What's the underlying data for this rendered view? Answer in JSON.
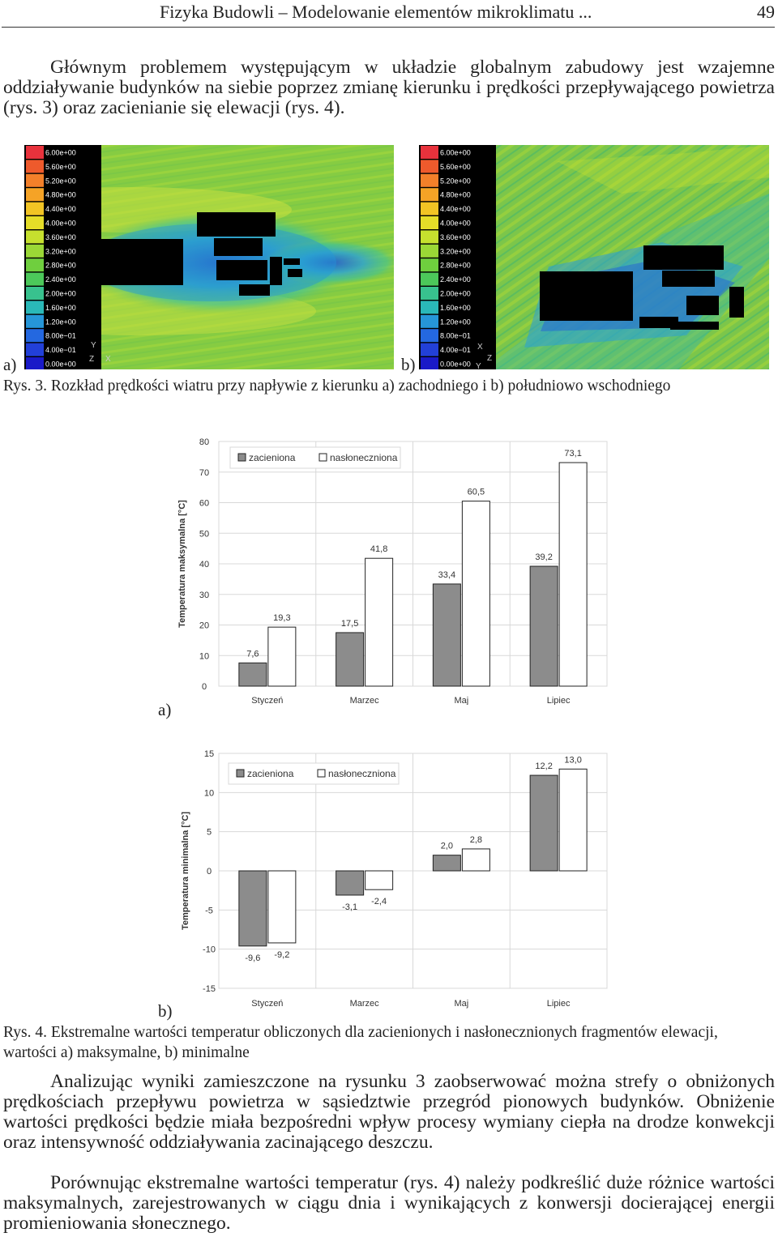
{
  "header": {
    "title": "Fizyka Budowli – Modelowanie elementów mikroklimatu ...",
    "page_number": "49"
  },
  "paragraph_1": "Głównym problemem występującym w układzie globalnym zabudowy jest wzajemne oddziaływanie budynków na siebie poprzez zmianę kierunku i prędkości przepływającego powietrza (rys. 3) oraz zacienianie się elewacji (rys. 4).",
  "fig3": {
    "label_a": "a)",
    "label_b": "b)",
    "caption": "Rys. 3. Rozkład prędkości wiatru przy napływie z kierunku a) zachodniego i b) południowo wschodniego",
    "legend": [
      {
        "label": "6.00e+00",
        "color": "#e8323c"
      },
      {
        "label": "5.60e+00",
        "color": "#ee5a2c"
      },
      {
        "label": "5.20e+00",
        "color": "#f3802a"
      },
      {
        "label": "4.80e+00",
        "color": "#f5a326"
      },
      {
        "label": "4.40e+00",
        "color": "#f2c424"
      },
      {
        "label": "4.00e+00",
        "color": "#e5dd28"
      },
      {
        "label": "3.60e+00",
        "color": "#c6e02e"
      },
      {
        "label": "3.20e+00",
        "color": "#9bd836"
      },
      {
        "label": "2.80e+00",
        "color": "#6fcf3e"
      },
      {
        "label": "2.40e+00",
        "color": "#4cc85a"
      },
      {
        "label": "2.00e+00",
        "color": "#38c28e"
      },
      {
        "label": "1.60e+00",
        "color": "#2ab8b8"
      },
      {
        "label": "1.20e+00",
        "color": "#2696d8"
      },
      {
        "label": "8.00e−01",
        "color": "#2468e0"
      },
      {
        "label": "4.00e−01",
        "color": "#2240d8"
      },
      {
        "label": "0.00e+00",
        "color": "#1a1ac8"
      }
    ],
    "axis_letters_a": [
      "Y",
      "Z",
      "X"
    ],
    "axis_letters_b": [
      "X",
      "Z",
      "Y"
    ]
  },
  "fig4": {
    "caption": "Rys. 4. Ekstremalne wartości temperatur obliczonych dla zacienionych i nasłonecznionych fragmentów elewacji, wartości a) maksymalne, b) minimalne",
    "label_a": "a)",
    "label_b": "b)",
    "colors": {
      "zacieniona": "#8c8c8c",
      "naslo": "#ffffff",
      "grid": "#d8d8d8"
    }
  },
  "chart_data": [
    {
      "type": "bar",
      "categories": [
        "Styczeń",
        "Marzec",
        "Maj",
        "Lipiec"
      ],
      "series": [
        {
          "name": "zacieniona",
          "values": [
            7.6,
            17.5,
            33.4,
            39.2
          ]
        },
        {
          "name": "nasłoneczniona",
          "values": [
            19.3,
            41.8,
            60.5,
            73.1
          ]
        }
      ],
      "data_labels": [
        [
          "7,6",
          "17,5",
          "33,4",
          "39,2"
        ],
        [
          "19,3",
          "41,8",
          "60,5",
          "73,1"
        ]
      ],
      "ylabel": "Temperatura maksymalna [°C]",
      "ylim": [
        0,
        80
      ],
      "yticks": [
        0,
        10,
        20,
        30,
        40,
        50,
        60,
        70,
        80
      ],
      "legend": "top"
    },
    {
      "type": "bar",
      "categories": [
        "Styczeń",
        "Marzec",
        "Maj",
        "Lipiec"
      ],
      "series": [
        {
          "name": "zacieniona",
          "values": [
            -9.6,
            -3.1,
            2.0,
            12.2
          ]
        },
        {
          "name": "nasłoneczniona",
          "values": [
            -9.2,
            -2.4,
            2.8,
            13.0
          ]
        }
      ],
      "data_labels": [
        [
          "-9,6",
          "-3,1",
          "2,0",
          "12,2"
        ],
        [
          "-9,2",
          "-2,4",
          "2,8",
          "13,0"
        ]
      ],
      "ylabel": "Temperatura minimalna [°C]",
      "ylim": [
        -15,
        15
      ],
      "yticks": [
        -15,
        -10,
        -5,
        0,
        5,
        10,
        15
      ],
      "legend": "top"
    }
  ],
  "paragraph_2": "Analizując wyniki zamieszczone na rysunku 3 zaobserwować można strefy o obniżonych prędkościach przepływu powietrza w sąsiedztwie przegród pionowych budynków. Obniżenie wartości prędkości będzie miała bezpośredni wpływ procesy wymiany ciepła na drodze konwekcji oraz intensywność oddziaływania zacinającego deszczu.",
  "paragraph_3": "Porównując ekstremalne wartości temperatur (rys. 4) należy podkreślić duże różnice wartości maksymalnych, zarejestrowanych w ciągu dnia i wynikających z konwersji docierającej energii promieniowania słonecznego."
}
